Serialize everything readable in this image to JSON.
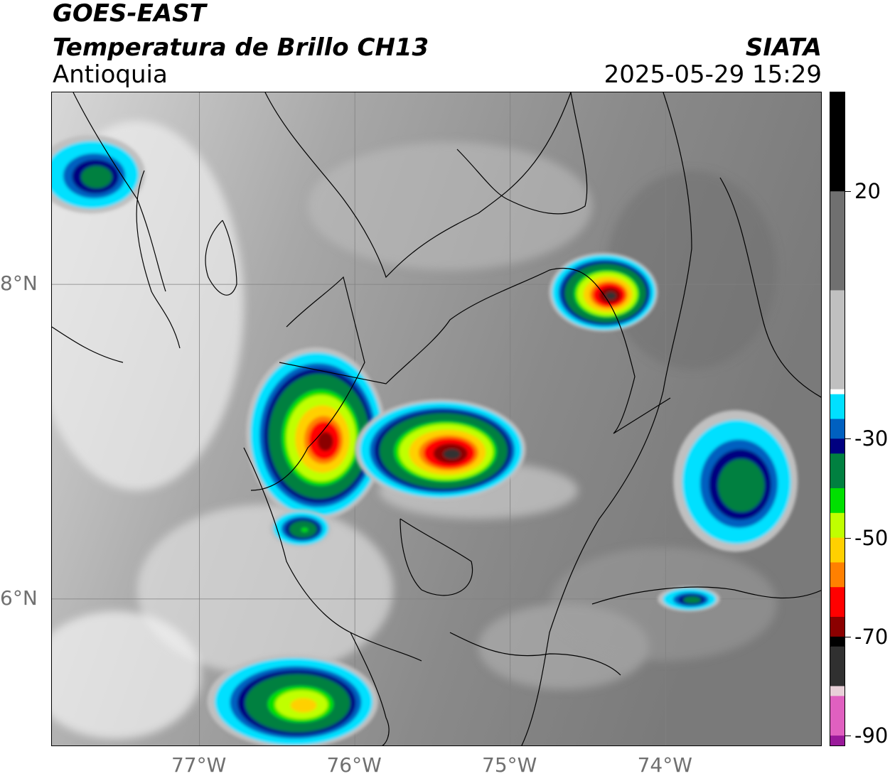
{
  "header": {
    "title_line1": "GOES-EAST",
    "title_line2": "Temperatura de Brillo CH13",
    "subtitle": "Antioquia",
    "organization": "SIATA",
    "datetime": "2025-05-29 15:29"
  },
  "axes": {
    "x_ticks": [
      {
        "label": "77°W",
        "lon": -77
      },
      {
        "label": "76°W",
        "lon": -76
      },
      {
        "label": "75°W",
        "lon": -75
      },
      {
        "label": "74°W",
        "lon": -74
      }
    ],
    "y_ticks": [
      {
        "label": "8°N",
        "lat": 8
      },
      {
        "label": "6°N",
        "lat": 6
      }
    ],
    "lon_range": [
      -77.95,
      -72.99
    ],
    "lat_range": [
      5.06,
      9.22
    ]
  },
  "colorbar": {
    "ticks": [
      {
        "label": "20",
        "value": 20
      },
      {
        "label": "-30",
        "value": -30
      },
      {
        "label": "-50",
        "value": -50
      },
      {
        "label": "-70",
        "value": -70
      },
      {
        "label": "-90",
        "value": -90
      }
    ],
    "range": [
      -92,
      40
    ],
    "stops": [
      {
        "value": -92,
        "color": "#ffffff"
      },
      {
        "value": -90,
        "color": "#9a1a9a"
      },
      {
        "value": -82,
        "color": "#e060c0"
      },
      {
        "value": -80,
        "color": "#e8d0d8"
      },
      {
        "value": -72,
        "color": "#303030"
      },
      {
        "value": -70,
        "color": "#000000"
      },
      {
        "value": -66,
        "color": "#8b0000"
      },
      {
        "value": -60,
        "color": "#ff0000"
      },
      {
        "value": -55,
        "color": "#ff8000"
      },
      {
        "value": -50,
        "color": "#ffd000"
      },
      {
        "value": -45,
        "color": "#c0ff00"
      },
      {
        "value": -40,
        "color": "#00e000"
      },
      {
        "value": -33,
        "color": "#008040"
      },
      {
        "value": -30,
        "color": "#000080"
      },
      {
        "value": -26,
        "color": "#0060c0"
      },
      {
        "value": -21,
        "color": "#00e0ff"
      },
      {
        "value": -20,
        "color": "#ffffff"
      },
      {
        "value": 0,
        "color": "#c0c0c0"
      },
      {
        "value": 20,
        "color": "#707070"
      },
      {
        "value": 40,
        "color": "#000000"
      }
    ]
  },
  "storm_cells": [
    {
      "lon": -76.25,
      "lat": 7.05,
      "rx": 0.45,
      "ry": 0.55,
      "min_temp": -70
    },
    {
      "lon": -75.45,
      "lat": 6.95,
      "rx": 0.55,
      "ry": 0.32,
      "min_temp": -75
    },
    {
      "lon": -74.4,
      "lat": 7.95,
      "rx": 0.35,
      "ry": 0.25,
      "min_temp": -76
    },
    {
      "lon": -73.55,
      "lat": 6.75,
      "rx": 0.4,
      "ry": 0.45,
      "min_temp": -40
    },
    {
      "lon": -76.4,
      "lat": 5.35,
      "rx": 0.55,
      "ry": 0.3,
      "min_temp": -55
    },
    {
      "lon": -73.85,
      "lat": 6.0,
      "rx": 0.2,
      "ry": 0.08,
      "min_temp": -38
    },
    {
      "lon": -76.35,
      "lat": 6.45,
      "rx": 0.2,
      "ry": 0.12,
      "min_temp": -42
    },
    {
      "lon": -77.7,
      "lat": 8.7,
      "rx": 0.35,
      "ry": 0.25,
      "min_temp": -36
    }
  ]
}
